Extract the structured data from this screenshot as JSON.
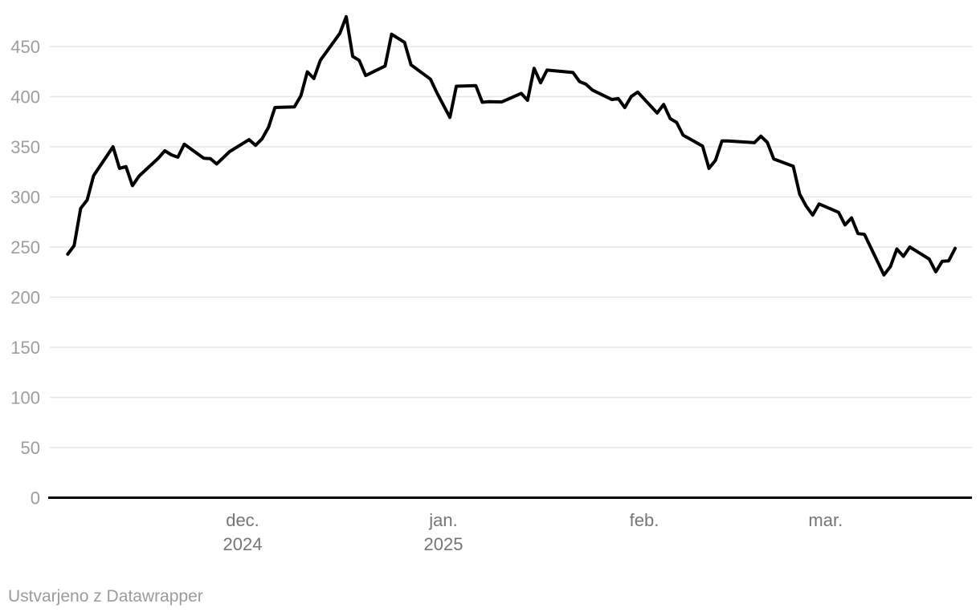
{
  "footer": {
    "attribution": "Ustvarjeno z Datawrapper"
  },
  "chart_data": {
    "type": "line",
    "title": "",
    "xlabel": "",
    "ylabel": "",
    "grid": "horizontal",
    "legend": "none",
    "ylim": [
      0,
      480
    ],
    "yticks": [
      0,
      50,
      100,
      150,
      200,
      250,
      300,
      350,
      400,
      450
    ],
    "colors": {
      "line": "#000000",
      "gridline": "#e6e6e6",
      "baseline": "#000000",
      "y_tick_label": "#9d9d9d",
      "x_tick_label": "#757575",
      "attribution": "#9b9b9b",
      "background": "#ffffff"
    },
    "xticks": [
      {
        "label": "dec.",
        "sublabel": "2024",
        "date": "2024-12-01"
      },
      {
        "label": "jan.",
        "sublabel": "2025",
        "date": "2025-01-01"
      },
      {
        "label": "feb.",
        "sublabel": "",
        "date": "2025-02-01"
      },
      {
        "label": "mar.",
        "sublabel": "",
        "date": "2025-03-01"
      }
    ],
    "x": [
      "2024-11-04",
      "2024-11-05",
      "2024-11-06",
      "2024-11-07",
      "2024-11-08",
      "2024-11-11",
      "2024-11-12",
      "2024-11-13",
      "2024-11-14",
      "2024-11-15",
      "2024-11-18",
      "2024-11-19",
      "2024-11-20",
      "2024-11-21",
      "2024-11-22",
      "2024-11-25",
      "2024-11-26",
      "2024-11-27",
      "2024-11-29",
      "2024-12-02",
      "2024-12-03",
      "2024-12-04",
      "2024-12-05",
      "2024-12-06",
      "2024-12-09",
      "2024-12-10",
      "2024-12-11",
      "2024-12-12",
      "2024-12-13",
      "2024-12-16",
      "2024-12-17",
      "2024-12-18",
      "2024-12-19",
      "2024-12-20",
      "2024-12-23",
      "2024-12-24",
      "2024-12-26",
      "2024-12-27",
      "2024-12-30",
      "2024-12-31",
      "2025-01-02",
      "2025-01-03",
      "2025-01-06",
      "2025-01-07",
      "2025-01-08",
      "2025-01-10",
      "2025-01-13",
      "2025-01-14",
      "2025-01-15",
      "2025-01-16",
      "2025-01-17",
      "2025-01-21",
      "2025-01-22",
      "2025-01-23",
      "2025-01-24",
      "2025-01-27",
      "2025-01-28",
      "2025-01-29",
      "2025-01-30",
      "2025-01-31",
      "2025-02-03",
      "2025-02-04",
      "2025-02-05",
      "2025-02-06",
      "2025-02-07",
      "2025-02-10",
      "2025-02-11",
      "2025-02-12",
      "2025-02-13",
      "2025-02-14",
      "2025-02-18",
      "2025-02-19",
      "2025-02-20",
      "2025-02-21",
      "2025-02-24",
      "2025-02-25",
      "2025-02-26",
      "2025-02-27",
      "2025-02-28",
      "2025-03-03",
      "2025-03-04",
      "2025-03-05",
      "2025-03-06",
      "2025-03-07",
      "2025-03-10",
      "2025-03-11",
      "2025-03-12",
      "2025-03-13",
      "2025-03-14",
      "2025-03-17",
      "2025-03-18",
      "2025-03-19",
      "2025-03-20",
      "2025-03-21"
    ],
    "values": [
      242.84,
      251.44,
      288.53,
      296.91,
      321.22,
      350.0,
      328.49,
      330.24,
      311.18,
      320.72,
      338.74,
      346.0,
      342.03,
      339.64,
      352.56,
      338.59,
      338.23,
      332.89,
      345.16,
      357.09,
      351.42,
      357.93,
      369.49,
      389.22,
      389.79,
      400.99,
      424.77,
      418.1,
      436.23,
      463.02,
      479.86,
      440.13,
      436.17,
      421.06,
      430.6,
      462.28,
      454.13,
      431.66,
      417.41,
      403.84,
      379.28,
      410.44,
      411.05,
      394.36,
      394.94,
      394.74,
      403.31,
      396.36,
      428.22,
      413.82,
      426.5,
      424.07,
      415.11,
      412.38,
      406.58,
      397.15,
      398.09,
      389.1,
      400.28,
      404.6,
      383.68,
      392.21,
      378.17,
      374.32,
      361.62,
      350.73,
      328.5,
      336.51,
      355.94,
      355.84,
      354.11,
      360.56,
      354.4,
      337.8,
      330.53,
      302.8,
      290.8,
      281.95,
      292.98,
      284.65,
      272.04,
      279.1,
      263.45,
      262.67,
      222.15,
      230.58,
      248.09,
      240.68,
      249.98,
      238.01,
      225.31,
      235.86,
      236.26,
      248.71
    ]
  }
}
